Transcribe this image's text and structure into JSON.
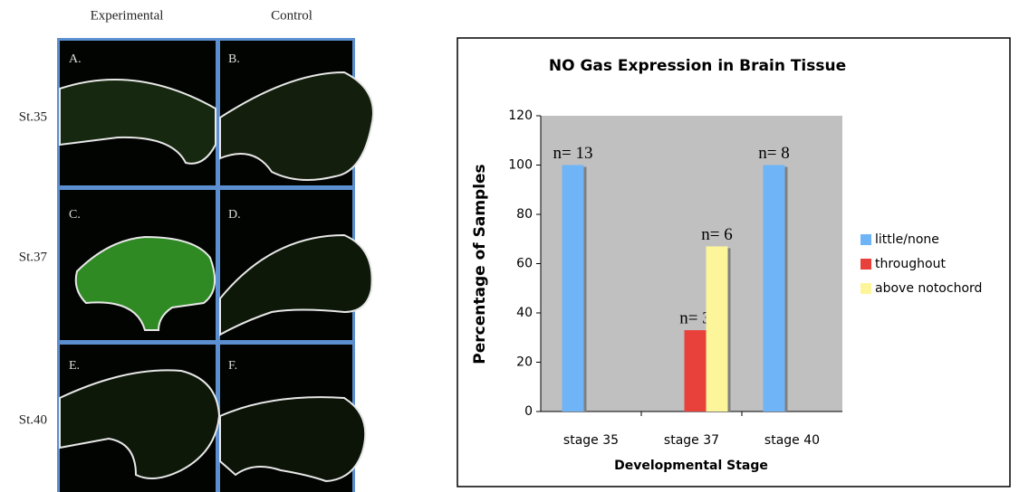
{
  "figure": {
    "columns": [
      "Experimental",
      "Control"
    ],
    "rows": [
      "St.35",
      "St.37",
      "St.40"
    ],
    "panels": [
      [
        "A.",
        "B."
      ],
      [
        "C.",
        "D."
      ],
      [
        "E.",
        "F."
      ]
    ]
  },
  "chart_data": {
    "type": "bar",
    "title": "NO Gas Expression in Brain Tissue",
    "x_label": "Developmental Stage",
    "y_label": "Percentage of Samples",
    "categories": [
      "stage 35",
      "stage 37",
      "stage 40"
    ],
    "series": [
      {
        "name": "little/none",
        "color": "#6fb4f7",
        "values": [
          100,
          0,
          100
        ],
        "n_labels": [
          "n= 13",
          null,
          "n= 8"
        ]
      },
      {
        "name": "throughout",
        "color": "#e8403b",
        "values": [
          0,
          33,
          0
        ],
        "n_labels": [
          null,
          "n= 3",
          null
        ]
      },
      {
        "name": "above notochord",
        "color": "#fdf59a",
        "values": [
          0,
          67,
          0
        ],
        "n_labels": [
          null,
          "n= 6",
          null
        ]
      }
    ],
    "ylim": [
      0,
      120
    ],
    "yticks": [
      0,
      20,
      40,
      60,
      80,
      100,
      120
    ],
    "grid": false,
    "legend": "right"
  }
}
